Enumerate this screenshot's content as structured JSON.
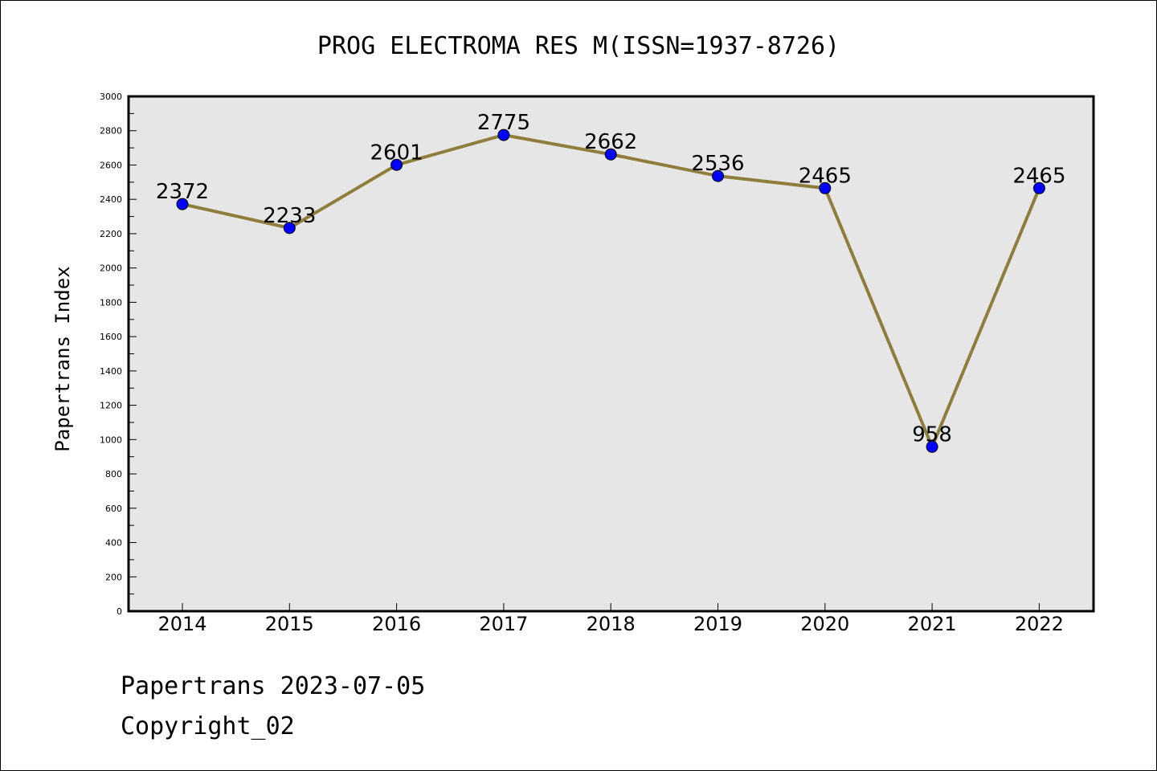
{
  "chart_data": {
    "type": "line",
    "title": "PROG ELECTROMA RES M(ISSN=1937-8726)",
    "xlabel": "",
    "ylabel": "Papertrans Index",
    "categories": [
      "2014",
      "2015",
      "2016",
      "2017",
      "2018",
      "2019",
      "2020",
      "2021",
      "2022"
    ],
    "series": [
      {
        "values": [
          2372,
          2233,
          2601,
          2775,
          2662,
          2536,
          2465,
          958,
          2465
        ]
      }
    ],
    "data_labels": [
      "2372",
      "2233",
      "2601",
      "2775",
      "2662",
      "2536",
      "2465",
      "958",
      "2465"
    ],
    "ylim": [
      0,
      3000
    ],
    "yticks": [
      0,
      200,
      400,
      600,
      800,
      1000,
      1200,
      1400,
      1600,
      1800,
      2000,
      2200,
      2400,
      2600,
      2800,
      3000
    ],
    "grid": false,
    "line_color": "#8f7d3c",
    "marker_color": "#0000ff",
    "plot_background": "#e6e6e6"
  },
  "footer": {
    "date_line": "Papertrans 2023-07-05",
    "copyright": "Copyright_02"
  }
}
